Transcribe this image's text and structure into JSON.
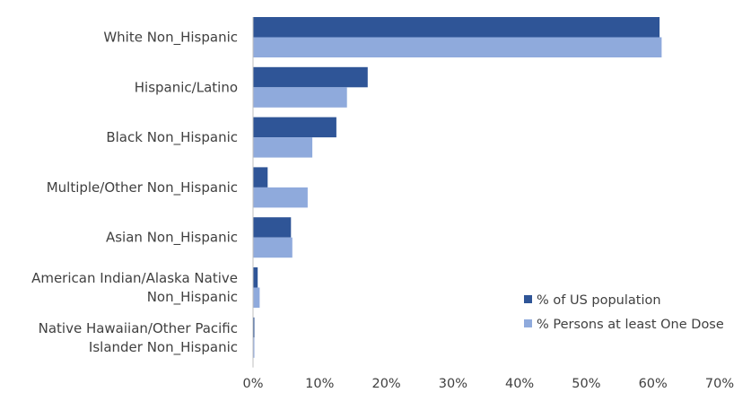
{
  "chart_data": {
    "type": "bar",
    "orientation": "horizontal",
    "title": "",
    "xlabel": "",
    "ylabel": "",
    "xlim": [
      0,
      70
    ],
    "x_ticks": [
      "0%",
      "10%",
      "20%",
      "30%",
      "40%",
      "50%",
      "60%",
      "70%"
    ],
    "x_tick_values": [
      0,
      10,
      20,
      30,
      40,
      50,
      60,
      70
    ],
    "categories": [
      [
        "White Non_Hispanic"
      ],
      [
        "Hispanic/Latino"
      ],
      [
        "Black Non_Hispanic"
      ],
      [
        "Multiple/Other Non_Hispanic"
      ],
      [
        "Asian Non_Hispanic"
      ],
      [
        "American Indian/Alaska Native",
        "Non_Hispanic"
      ],
      [
        "Native Hawaiian/Other Pacific",
        "Islander Non_Hispanic"
      ]
    ],
    "series": [
      {
        "name": "% of US population",
        "color": "#2f5597",
        "values": [
          61.0,
          17.2,
          12.5,
          2.2,
          5.7,
          0.7,
          0.2
        ]
      },
      {
        "name": "% Persons at least One Dose",
        "color": "#8faadc",
        "values": [
          61.3,
          14.1,
          8.9,
          8.2,
          5.9,
          1.0,
          0.2
        ]
      }
    ],
    "grid": false,
    "legend": "bottom-right"
  }
}
